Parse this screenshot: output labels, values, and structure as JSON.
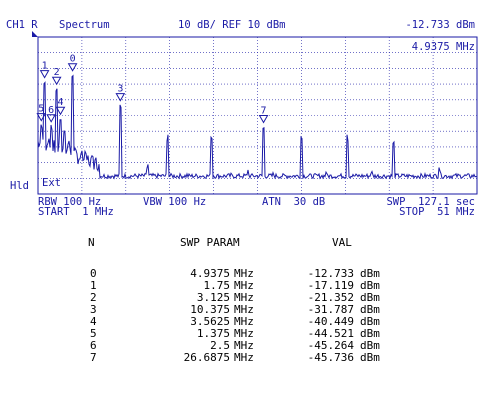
{
  "header": {
    "channel": "CH1 R",
    "mode": "Spectrum",
    "scale": "10 dB/ REF 10 dBm",
    "marker_readout": "-12.733 dBm",
    "marker_freq": "4.9375 MHz"
  },
  "side_label": "Hld",
  "ext_label": "Ext",
  "footer": {
    "rbw": "RBW 100 Hz",
    "vbw": "VBW 100 Hz",
    "atn": "ATN  30 dB",
    "swp": "SWP  127.1 sec",
    "start": "START  1 MHz",
    "stop": "STOP  51 MHz"
  },
  "marker_labels": [
    "0",
    "1",
    "2",
    "3",
    "4",
    "5",
    "6",
    "7"
  ],
  "table": {
    "headers": [
      "N",
      "SWP PARAM",
      "VAL"
    ],
    "rows": [
      {
        "n": "0",
        "param": "4.9375",
        "unit": "MHz",
        "val": "-12.733",
        "vunit": "dBm"
      },
      {
        "n": "1",
        "param": "1.75",
        "unit": "MHz",
        "val": "-17.119",
        "vunit": "dBm"
      },
      {
        "n": "2",
        "param": "3.125",
        "unit": "MHz",
        "val": "-21.352",
        "vunit": "dBm"
      },
      {
        "n": "3",
        "param": "10.375",
        "unit": "MHz",
        "val": "-31.787",
        "vunit": "dBm"
      },
      {
        "n": "4",
        "param": "3.5625",
        "unit": "MHz",
        "val": "-40.449",
        "vunit": "dBm"
      },
      {
        "n": "5",
        "param": "1.375",
        "unit": "MHz",
        "val": "-44.521",
        "vunit": "dBm"
      },
      {
        "n": "6",
        "param": "2.5",
        "unit": "MHz",
        "val": "-45.264",
        "vunit": "dBm"
      },
      {
        "n": "7",
        "param": "26.6875",
        "unit": "MHz",
        "val": "-45.736",
        "vunit": "dBm"
      }
    ]
  },
  "chart_data": {
    "type": "line",
    "xlim": [
      1,
      51
    ],
    "ylim": [
      -90,
      10
    ],
    "xunit": "MHz",
    "yunit": "dBm",
    "reference_level": 10,
    "db_per_div": 10,
    "markers": [
      {
        "id": "0",
        "x": 4.9375,
        "y": -12.733
      },
      {
        "id": "1",
        "x": 1.75,
        "y": -17.119
      },
      {
        "id": "2",
        "x": 3.125,
        "y": -21.352
      },
      {
        "id": "3",
        "x": 10.375,
        "y": -31.787
      },
      {
        "id": "4",
        "x": 3.5625,
        "y": -40.449
      },
      {
        "id": "5",
        "x": 1.375,
        "y": -44.521
      },
      {
        "id": "6",
        "x": 2.5,
        "y": -45.264
      },
      {
        "id": "7",
        "x": 26.6875,
        "y": -45.736
      }
    ],
    "peaks": [
      {
        "x": 1.375,
        "y": -44.5
      },
      {
        "x": 1.75,
        "y": -17.1
      },
      {
        "x": 2.2,
        "y": -55
      },
      {
        "x": 2.5,
        "y": -45.3
      },
      {
        "x": 3.125,
        "y": -21.4
      },
      {
        "x": 3.5625,
        "y": -40.4
      },
      {
        "x": 4.0,
        "y": -48
      },
      {
        "x": 4.5,
        "y": -55
      },
      {
        "x": 4.9375,
        "y": -12.7
      },
      {
        "x": 6.0,
        "y": -62
      },
      {
        "x": 7.5,
        "y": -68
      },
      {
        "x": 10.375,
        "y": -31.8
      },
      {
        "x": 13.5,
        "y": -70
      },
      {
        "x": 15.8,
        "y": -52
      },
      {
        "x": 18.0,
        "y": -76
      },
      {
        "x": 20.75,
        "y": -52
      },
      {
        "x": 23.0,
        "y": -76
      },
      {
        "x": 24.9,
        "y": -74
      },
      {
        "x": 26.6875,
        "y": -45.7
      },
      {
        "x": 27.8,
        "y": -75
      },
      {
        "x": 31.0,
        "y": -52
      },
      {
        "x": 33.8,
        "y": -76
      },
      {
        "x": 36.2,
        "y": -52
      },
      {
        "x": 39.0,
        "y": -74
      },
      {
        "x": 41.5,
        "y": -55
      },
      {
        "x": 46.7,
        "y": -72
      }
    ],
    "noise_floor": -80,
    "grid": true
  }
}
